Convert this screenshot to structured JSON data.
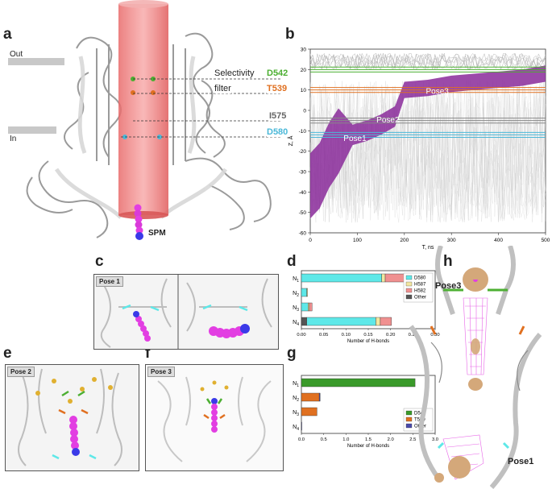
{
  "panels": {
    "a": "a",
    "b": "b",
    "c": "c",
    "d": "d",
    "e": "e",
    "f": "f",
    "g": "g",
    "h": "h"
  },
  "panel_a": {
    "out_label": "Out",
    "in_label": "In",
    "selectivity_label": "Selectivity",
    "filter_label": "filter",
    "residues": [
      {
        "name": "D542",
        "color": "#4caf32"
      },
      {
        "name": "T539",
        "color": "#e07020"
      },
      {
        "name": "I575",
        "color": "#666666"
      },
      {
        "name": "D580",
        "color": "#4ab8d8"
      }
    ],
    "spm_label": "SPM"
  },
  "panel_c": {
    "tag": "Pose 1"
  },
  "panel_e": {
    "tag": "Pose 2"
  },
  "panel_f": {
    "tag": "Pose 3"
  },
  "panel_h": {
    "pose3": "Pose3",
    "pose1": "Pose1"
  },
  "chart_data": [
    {
      "id": "b",
      "type": "line",
      "xlabel": "T, ns",
      "ylabel": "Z, Å",
      "xlim": [
        0,
        500
      ],
      "ylim": [
        -60,
        30
      ],
      "xticks": [
        0,
        100,
        200,
        300,
        400,
        500
      ],
      "yticks": [
        -60,
        -50,
        -40,
        -30,
        -20,
        -10,
        0,
        10,
        20,
        30
      ],
      "series": [
        {
          "name": "D542",
          "color": "#4caf32",
          "x": [
            0,
            100,
            200,
            300,
            400,
            500
          ],
          "y": [
            20,
            20,
            20,
            20,
            20,
            20
          ]
        },
        {
          "name": "T539",
          "color": "#e07020",
          "x": [
            0,
            100,
            200,
            300,
            400,
            500
          ],
          "y": [
            10,
            10,
            10,
            10,
            10,
            10
          ]
        },
        {
          "name": "I575",
          "color": "#888888",
          "x": [
            0,
            100,
            200,
            300,
            400,
            500
          ],
          "y": [
            -5,
            -5,
            -5,
            -5,
            -5,
            -5
          ]
        },
        {
          "name": "D580",
          "color": "#4ab8d8",
          "x": [
            0,
            100,
            200,
            300,
            400,
            500
          ],
          "y": [
            -12,
            -12,
            -12,
            -12,
            -12,
            -12
          ]
        },
        {
          "name": "SPM",
          "color": "#8a2a9a",
          "x": [
            0,
            20,
            40,
            60,
            90,
            120,
            150,
            180,
            200,
            250,
            300,
            350,
            400,
            450,
            500
          ],
          "y": [
            -35,
            -30,
            -20,
            -13,
            -12,
            -10,
            -7,
            -3,
            10,
            11,
            13,
            14,
            15,
            16,
            18
          ]
        }
      ],
      "annotations": [
        {
          "text": "Pose1",
          "x": 95,
          "y": -15
        },
        {
          "text": "Pose2",
          "x": 165,
          "y": -6
        },
        {
          "text": "Pose3",
          "x": 270,
          "y": 8
        }
      ]
    },
    {
      "id": "d",
      "type": "bar",
      "orientation": "horizontal",
      "stacked": true,
      "xlabel": "Number of H-bonds",
      "xlim": [
        0,
        0.3
      ],
      "xticks": [
        "0.00",
        "0.05",
        "0.10",
        "0.15",
        "0.20",
        "0.25",
        "0.30"
      ],
      "categories": [
        "N1",
        "N2",
        "N3",
        "N4"
      ],
      "series": [
        {
          "name": "Other",
          "color": "#555555",
          "values": [
            0.0,
            0.0,
            0.0,
            0.012
          ]
        },
        {
          "name": "D580",
          "color": "#5ee8e8",
          "values": [
            0.18,
            0.012,
            0.015,
            0.155
          ]
        },
        {
          "name": "H587",
          "color": "#f2e6a0",
          "values": [
            0.008,
            0.002,
            0.003,
            0.01
          ]
        },
        {
          "name": "H582",
          "color": "#f09090",
          "values": [
            0.06,
            0.0,
            0.006,
            0.025
          ]
        }
      ],
      "legend": "top-right"
    },
    {
      "id": "g",
      "type": "bar",
      "orientation": "horizontal",
      "stacked": true,
      "xlabel": "Number of H-bonds",
      "xlim": [
        0,
        3.0
      ],
      "xticks": [
        "0.0",
        "0.5",
        "1.0",
        "1.5",
        "2.0",
        "2.5",
        "3.0"
      ],
      "categories": [
        "N1",
        "N2",
        "N3",
        "N4"
      ],
      "series": [
        {
          "name": "D542",
          "color": "#3a9a2a",
          "values": [
            2.55,
            0.0,
            0.0,
            0.0
          ]
        },
        {
          "name": "T539",
          "color": "#e07020",
          "values": [
            0.0,
            0.4,
            0.35,
            0.0
          ]
        },
        {
          "name": "Other",
          "color": "#4a4aaa",
          "values": [
            0.0,
            0.02,
            0.0,
            0.01
          ]
        }
      ],
      "legend": "bottom-right"
    }
  ]
}
